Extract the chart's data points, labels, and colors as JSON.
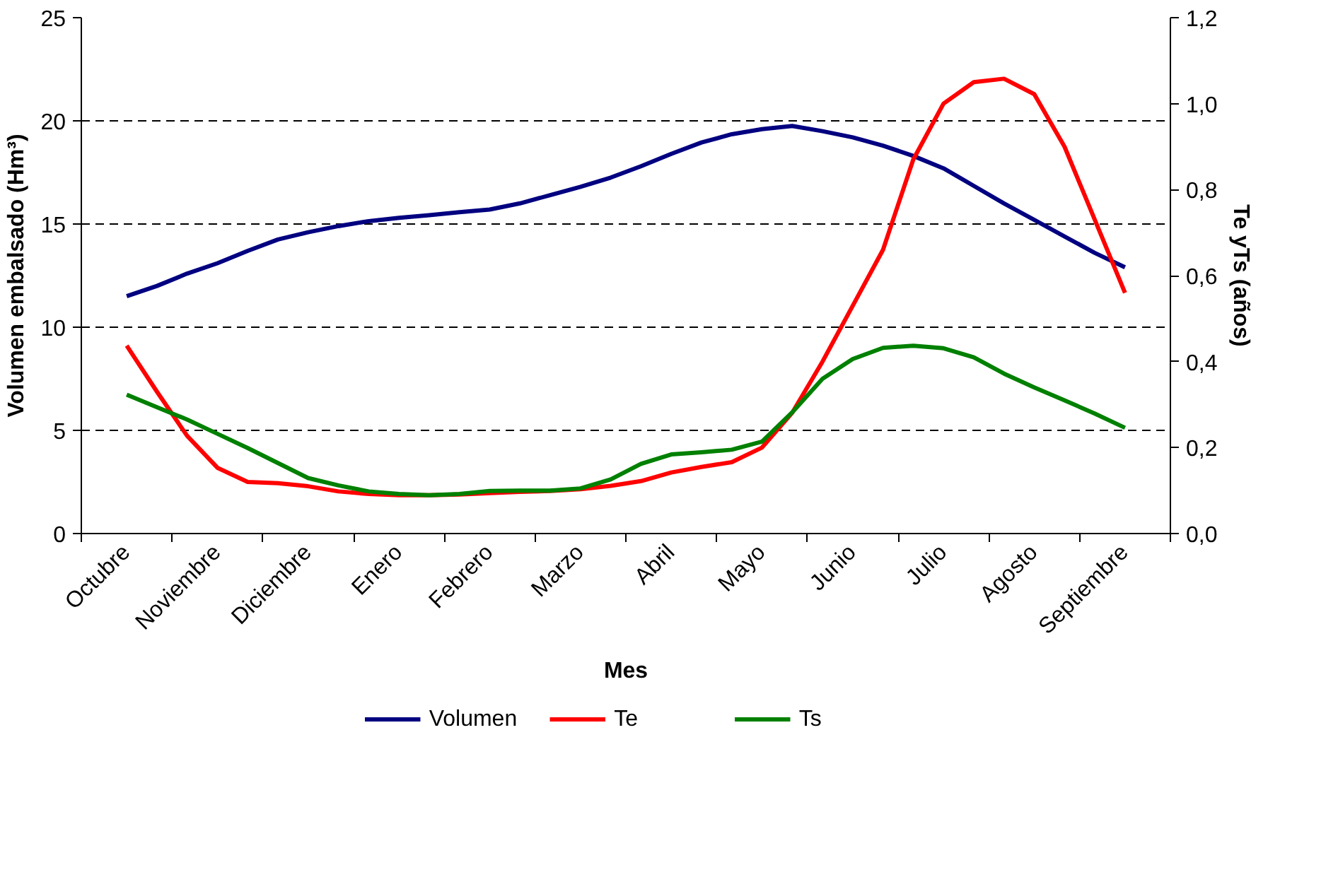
{
  "chart_data": {
    "type": "line",
    "xlabel": "Mes",
    "ylabel": "Volumen embalsado (Hm³)",
    "y2label": "Te yTs (años)",
    "categories": [
      null,
      "Octubre",
      null,
      null,
      "Noviembre",
      null,
      null,
      "Diciembre",
      null,
      null,
      "Enero",
      null,
      null,
      "Febrero",
      null,
      null,
      "Marzo",
      null,
      null,
      "Abril",
      null,
      null,
      "Mayo",
      null,
      null,
      "Junio",
      null,
      null,
      "Julio",
      null,
      null,
      "Agosto",
      null,
      null,
      "Septiembre",
      null
    ],
    "ylim": [
      0,
      25
    ],
    "yticks": [
      0,
      5,
      10,
      15,
      20,
      25
    ],
    "y2lim": [
      0,
      1.2
    ],
    "y2ticks": [
      {
        "value": 0,
        "label": "0,0"
      },
      {
        "value": 0.2,
        "label": "0,2"
      },
      {
        "value": 0.4,
        "label": "0,4"
      },
      {
        "value": 0.6,
        "label": "0,6"
      },
      {
        "value": 0.8,
        "label": "0,8"
      },
      {
        "value": 1.0,
        "label": "1,0"
      },
      {
        "value": 1.2,
        "label": "1,2"
      }
    ],
    "grid": "y",
    "legend": "bottom",
    "line_style": "solid",
    "marker": "none",
    "series": [
      {
        "name": "Volumen",
        "color": "#000080",
        "values": [
          null,
          11.5,
          12.0,
          12.6,
          13.1,
          13.7,
          14.25,
          14.6,
          14.9,
          15.14,
          15.3,
          15.43,
          15.57,
          15.7,
          16.0,
          16.4,
          16.8,
          17.25,
          17.8,
          18.4,
          18.95,
          19.35,
          19.6,
          19.75,
          19.5,
          19.2,
          18.8,
          18.3,
          17.7,
          16.85,
          16.0,
          15.2,
          14.4,
          13.6,
          12.9,
          null
        ]
      },
      {
        "name": "Te",
        "color": "#ff0000",
        "axis": "y2",
        "values": [
          null,
          0.437,
          0.33,
          0.227,
          0.153,
          0.12,
          0.117,
          0.11,
          0.098,
          0.092,
          0.089,
          0.089,
          0.091,
          0.094,
          0.097,
          0.099,
          0.103,
          0.111,
          0.122,
          0.142,
          0.155,
          0.166,
          0.2,
          0.281,
          0.4,
          0.53,
          0.66,
          0.87,
          1.0,
          1.05,
          1.058,
          1.022,
          0.9,
          0.73,
          0.56,
          null
        ]
      },
      {
        "name": "Ts",
        "color": "#008000",
        "axis": "y2",
        "values": [
          null,
          0.323,
          0.294,
          0.265,
          0.232,
          0.199,
          0.164,
          0.129,
          0.112,
          0.098,
          0.092,
          0.089,
          0.092,
          0.099,
          0.1,
          0.1,
          0.105,
          0.126,
          0.162,
          0.184,
          0.189,
          0.195,
          0.214,
          0.282,
          0.36,
          0.406,
          0.432,
          0.437,
          0.431,
          0.41,
          0.372,
          0.34,
          0.31,
          0.279,
          0.246,
          null
        ]
      }
    ]
  }
}
